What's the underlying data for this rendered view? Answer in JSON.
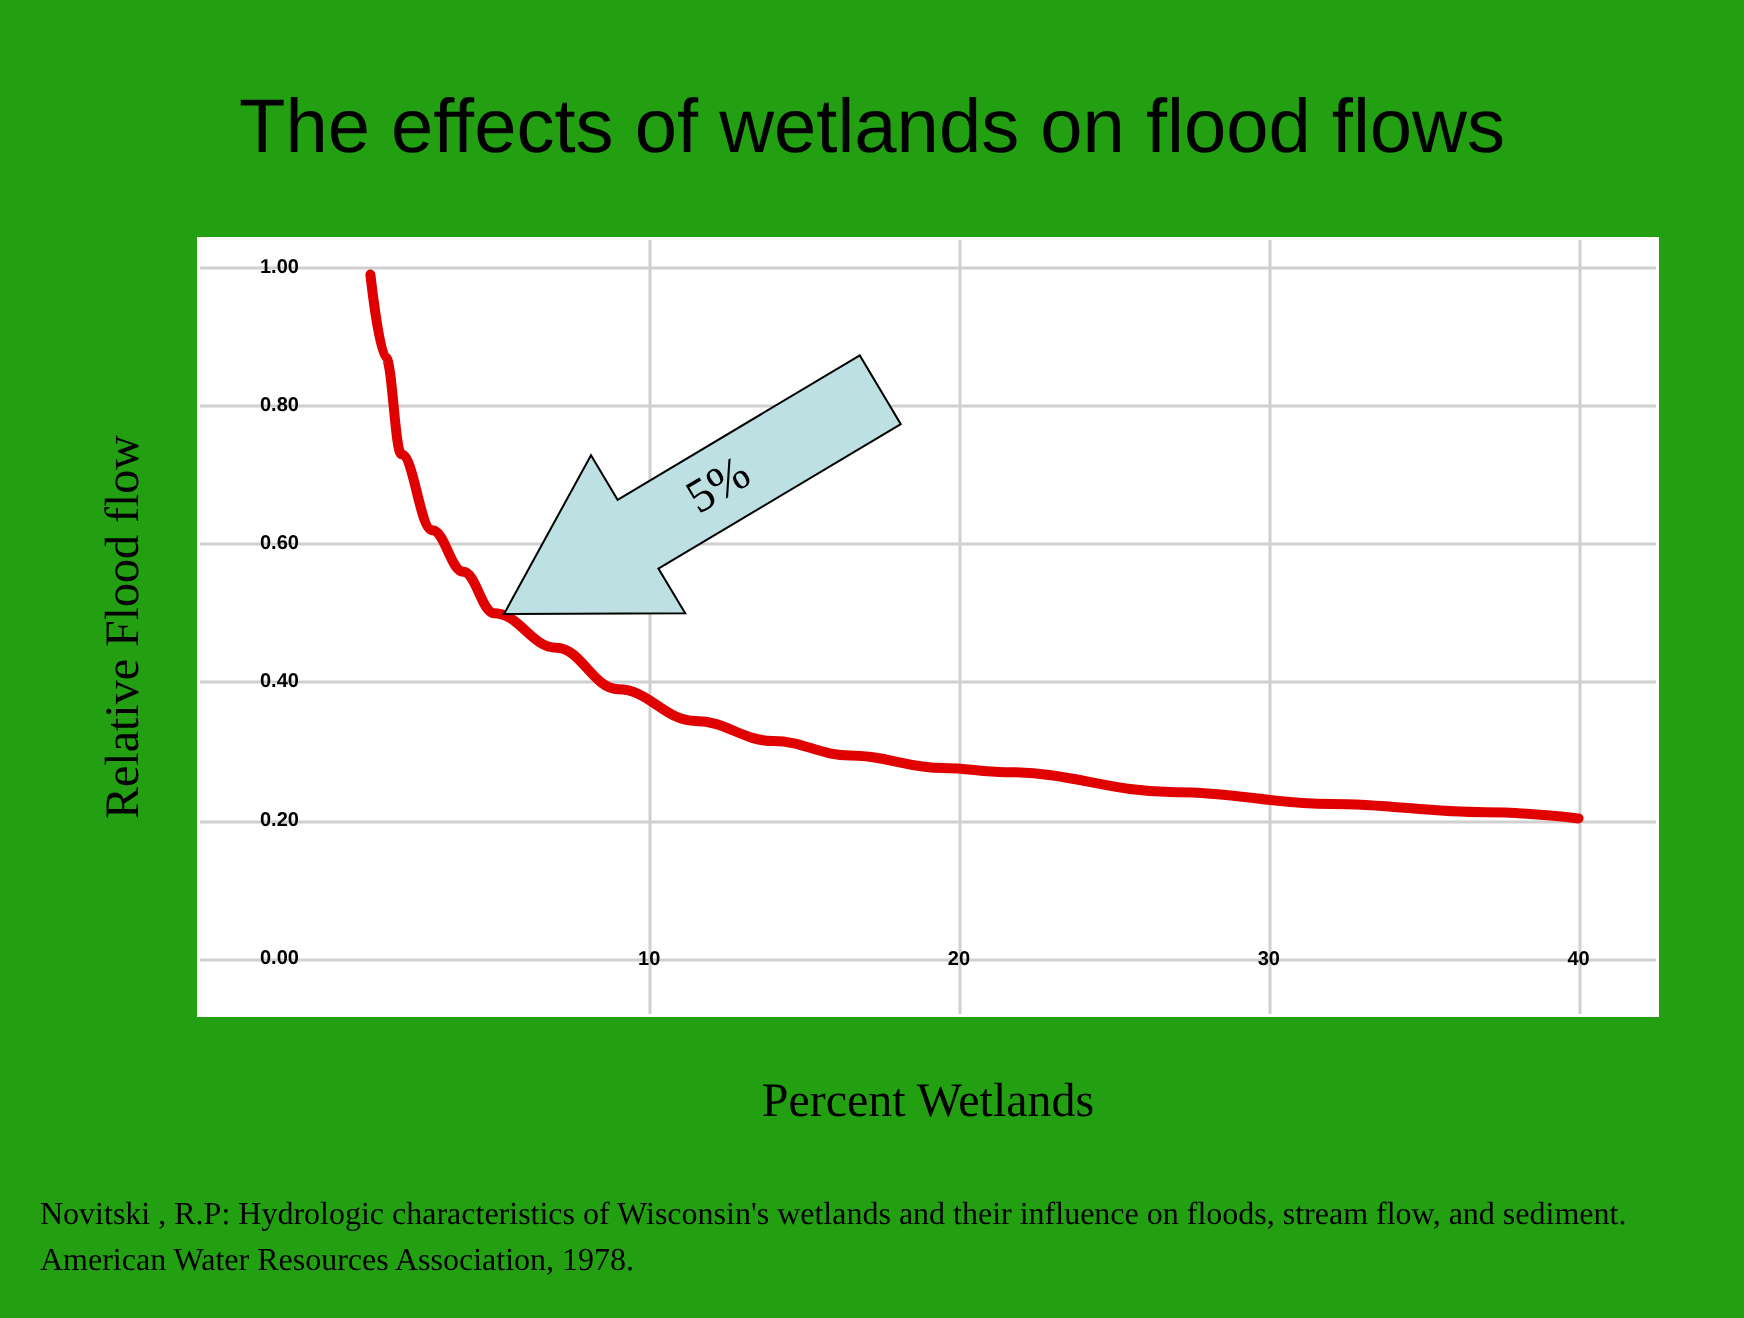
{
  "chart_data": {
    "type": "line",
    "title": "The effects of wetlands on flood flows",
    "xlabel": "Percent Wetlands",
    "ylabel": "Relative Flood flow",
    "x": [
      1,
      1.5,
      2,
      3,
      4,
      5,
      7,
      9,
      11.5,
      14,
      16.5,
      19.5,
      21.5,
      27,
      32,
      37,
      40
    ],
    "series": [
      {
        "color": "#e00000",
        "values": [
          0.99,
          0.87,
          0.73,
          0.62,
          0.56,
          0.5,
          0.45,
          0.39,
          0.344,
          0.315,
          0.294,
          0.276,
          0.27,
          0.241,
          0.224,
          0.212,
          0.203
        ]
      }
    ],
    "xlim": [
      -4.5,
      42.5
    ],
    "xticks": [
      10,
      20,
      30,
      40
    ],
    "ylim": [
      -0.08,
      1.04
    ],
    "yticks": [
      {
        "value": 0,
        "label": "0.00"
      },
      {
        "value": 0.2,
        "label": "0.20"
      },
      {
        "value": 0.4,
        "label": "0.40"
      },
      {
        "value": 0.6,
        "label": "0.60"
      },
      {
        "value": 0.8,
        "label": "0.80"
      },
      {
        "value": 1,
        "label": "1.00"
      }
    ],
    "grid": true,
    "marker": "none",
    "line_style": "solid",
    "annotations": [
      "5%",
      "Novitski , R.P: Hydrologic characteristics of Wisconsin's wetlands and their influence on floods, stream flow, and sediment. American Water Resources Association, 1978."
    ]
  }
}
